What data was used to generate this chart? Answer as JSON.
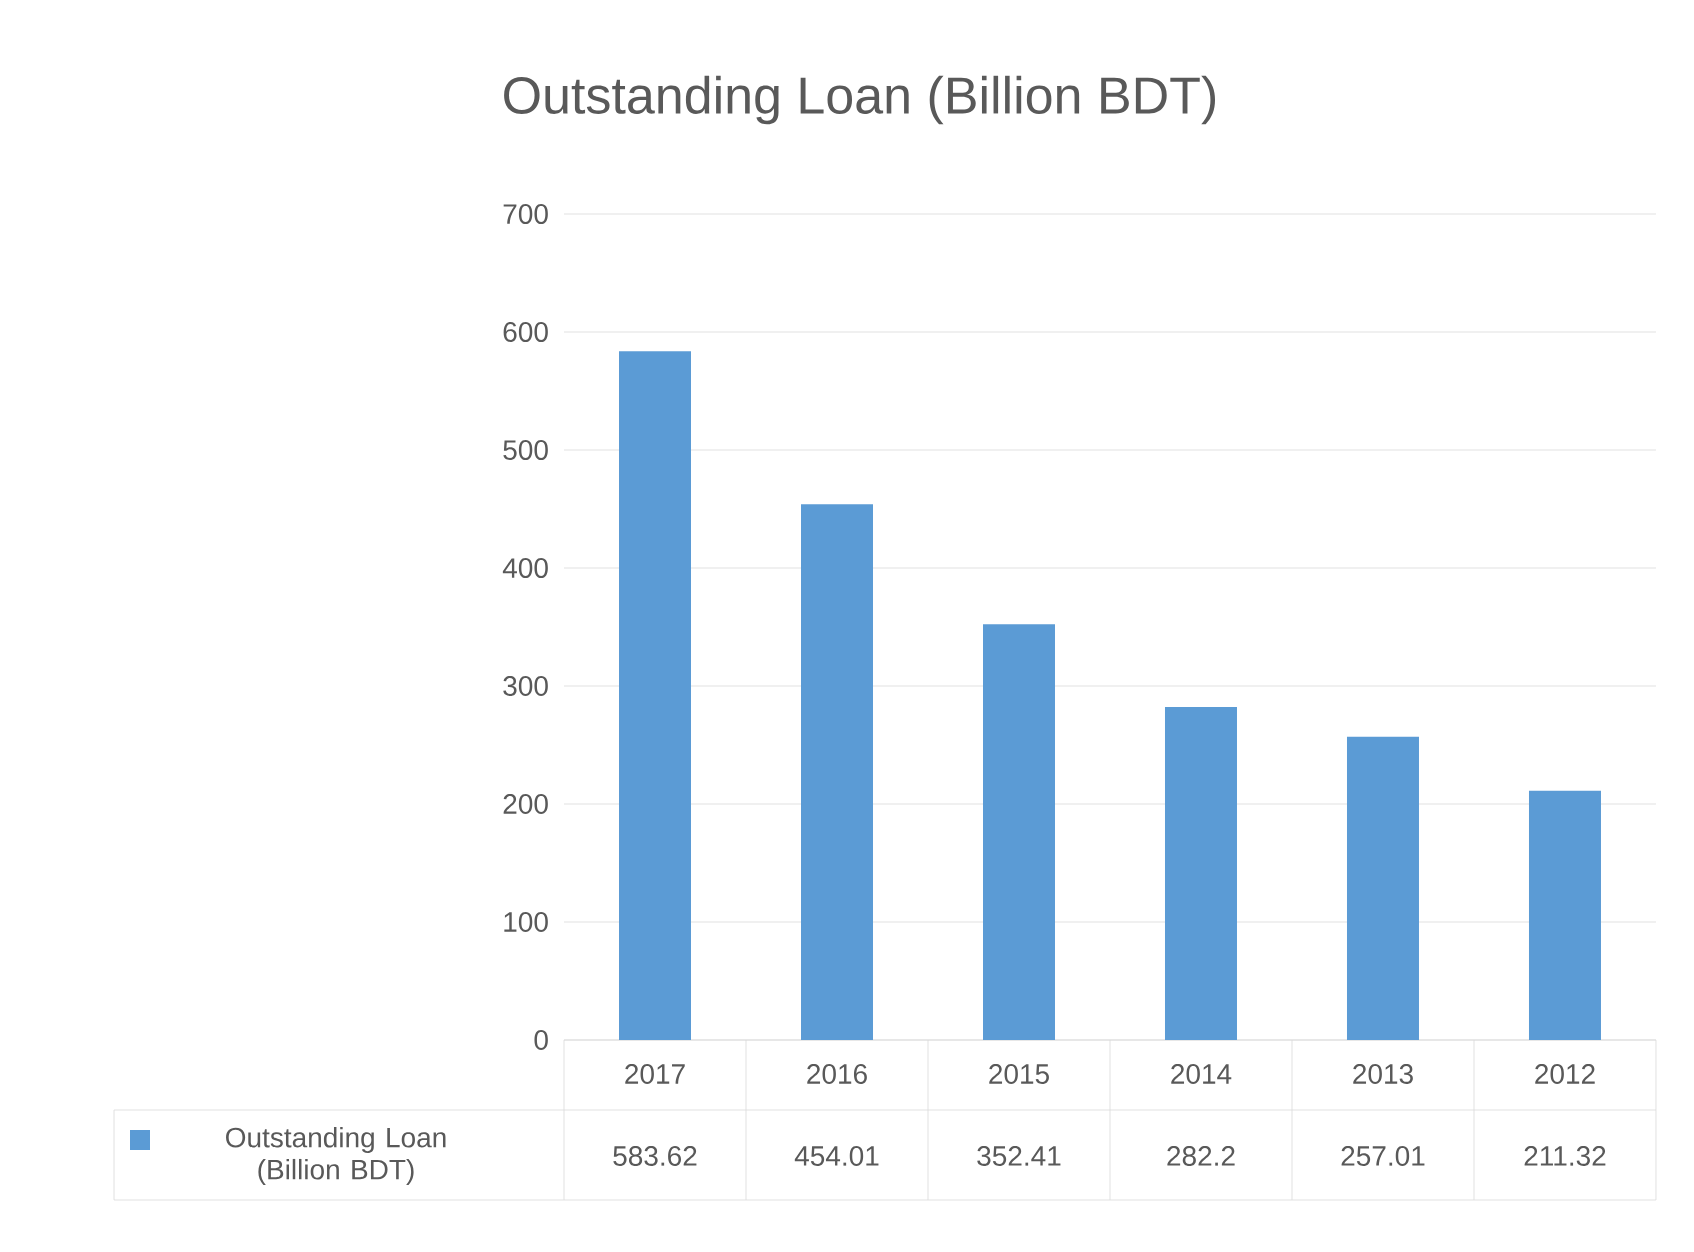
{
  "chart_data": {
    "type": "bar",
    "title": "Outstanding Loan (Billion BDT)",
    "categories": [
      "2017",
      "2016",
      "2015",
      "2014",
      "2013",
      "2012"
    ],
    "series": [
      {
        "name": "Outstanding Loan (Billion BDT)",
        "color": "#5b9bd5",
        "values": [
          583.62,
          454.01,
          352.41,
          282.2,
          257.01,
          211.32
        ],
        "value_labels": [
          "583.62",
          "454.01",
          "352.41",
          "282.2",
          "257.01",
          "211.32"
        ]
      }
    ],
    "ylim": [
      0,
      700
    ],
    "yticks": [
      0,
      100,
      200,
      300,
      400,
      500,
      600,
      700
    ],
    "grid": "y",
    "legend": "bottom"
  }
}
